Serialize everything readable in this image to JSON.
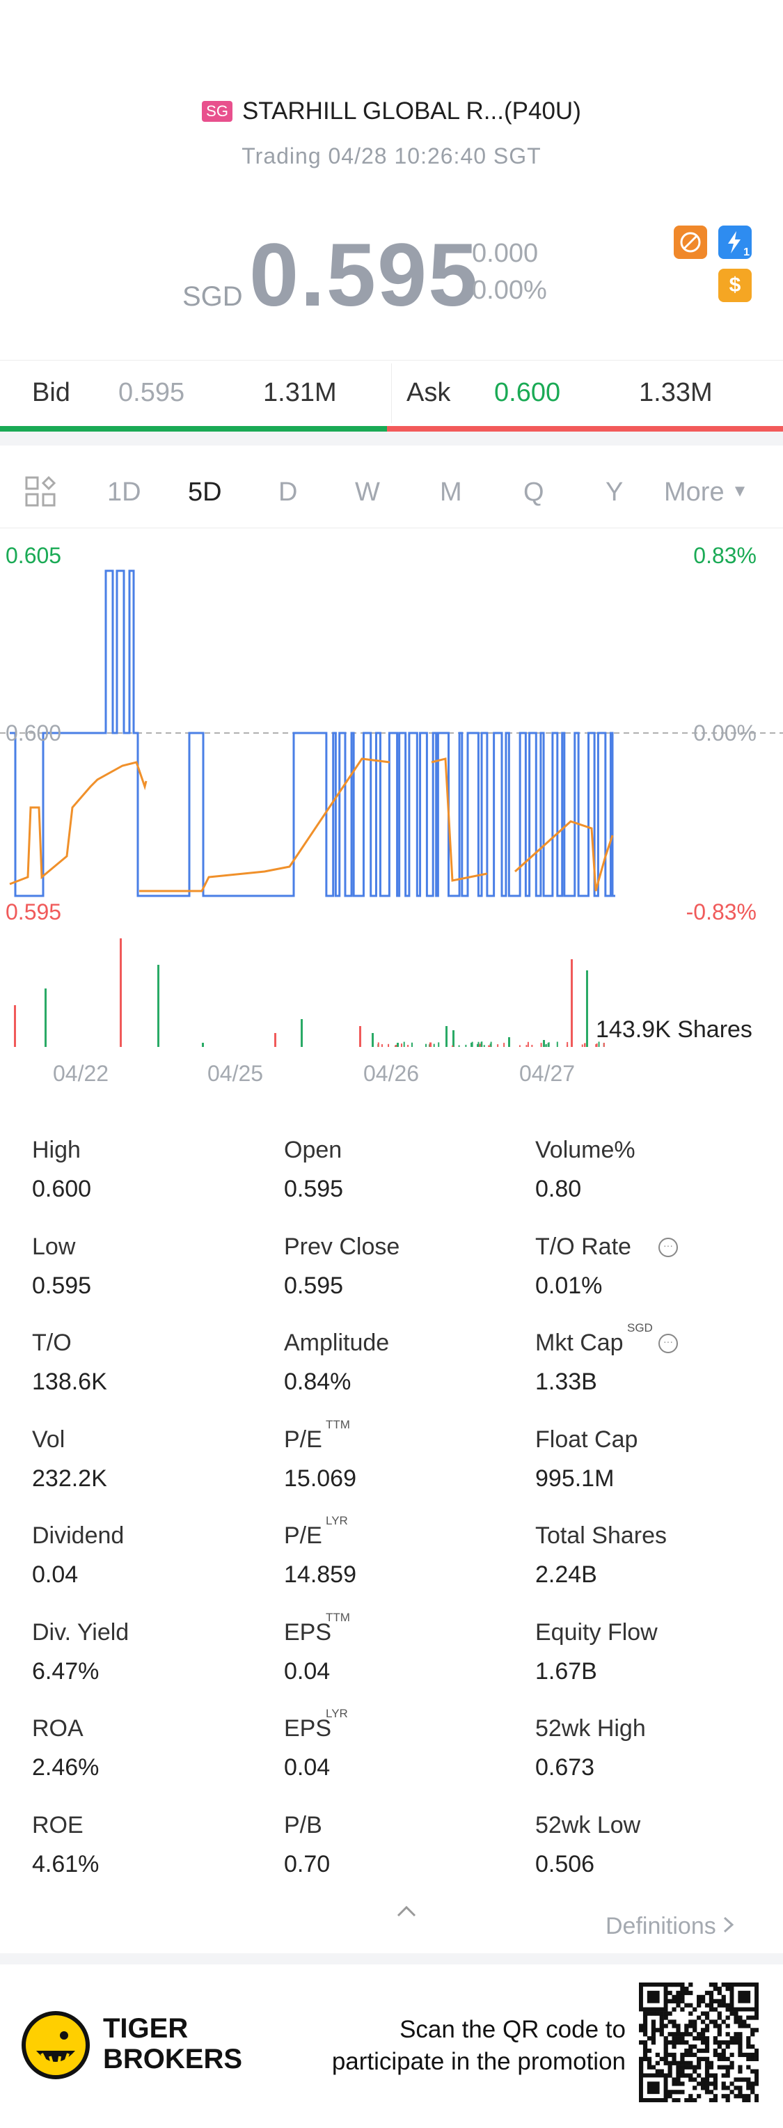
{
  "header": {
    "market_badge": "SG",
    "title": "STARHILL GLOBAL R...(P40U)",
    "status": "Trading 04/28 10:26:40 SGT",
    "currency": "SGD",
    "price": "0.595",
    "change": "0.000",
    "change_pct": "0.00%",
    "icons": [
      "no-fee-icon",
      "lightning-level-icon",
      "dollar-icon"
    ],
    "lightning_level": "1",
    "dollar_symbol": "$"
  },
  "quote": {
    "bid_label": "Bid",
    "bid_price": "0.595",
    "bid_size": "1.31M",
    "ask_label": "Ask",
    "ask_price": "0.600",
    "ask_size": "1.33M",
    "colors": {
      "bid": "#1aaa55",
      "ask": "#f25a5a"
    }
  },
  "tabs": {
    "items": [
      "1D",
      "5D",
      "D",
      "W",
      "M",
      "Q",
      "Y"
    ],
    "active": "5D",
    "more": "More"
  },
  "chart_data": {
    "type": "line",
    "price_axis": {
      "top": "0.605",
      "mid": "0.600",
      "bottom": "0.595"
    },
    "pct_axis": {
      "top": "0.83%",
      "mid": "0.00%",
      "bottom": "-0.83%"
    },
    "ylim": [
      0.595,
      0.605
    ],
    "dates": [
      "04/22",
      "04/25",
      "04/26",
      "04/27"
    ],
    "volume_label": "143.9K Shares",
    "colors": {
      "price_line": "#4a7fe6",
      "avg_line": "#f0902a",
      "up": "#2aaa66",
      "down": "#f05a5a"
    }
  },
  "stats": [
    [
      {
        "label": "High",
        "value": "0.600"
      },
      {
        "label": "Open",
        "value": "0.595"
      },
      {
        "label": "Volume%",
        "value": "0.80"
      }
    ],
    [
      {
        "label": "Low",
        "value": "0.595"
      },
      {
        "label": "Prev Close",
        "value": "0.595"
      },
      {
        "label": "T/O Rate",
        "value": "0.01%"
      }
    ],
    [
      {
        "label": "T/O",
        "value": "138.6K"
      },
      {
        "label": "Amplitude",
        "value": "0.84%"
      },
      {
        "label": "Mkt Cap",
        "value": "1.33B",
        "sup": "SGD"
      }
    ],
    [
      {
        "label": "Vol",
        "value": "232.2K"
      },
      {
        "label": "P/E",
        "value": "15.069",
        "sup": "TTM"
      },
      {
        "label": "Float Cap",
        "value": "995.1M"
      }
    ],
    [
      {
        "label": "Dividend",
        "value": "0.04"
      },
      {
        "label": "P/E",
        "value": "14.859",
        "sup": "LYR"
      },
      {
        "label": "Total Shares",
        "value": "2.24B"
      }
    ],
    [
      {
        "label": "Div. Yield",
        "value": "6.47%"
      },
      {
        "label": "EPS",
        "value": "0.04",
        "sup": "TTM"
      },
      {
        "label": "Equity Flow",
        "value": "1.67B"
      }
    ],
    [
      {
        "label": "ROA",
        "value": "2.46%"
      },
      {
        "label": "EPS",
        "value": "0.04",
        "sup": "LYR"
      },
      {
        "label": "52wk High",
        "value": "0.673"
      }
    ],
    [
      {
        "label": "ROE",
        "value": "4.61%"
      },
      {
        "label": "P/B",
        "value": "0.70"
      },
      {
        "label": "52wk Low",
        "value": "0.506"
      }
    ]
  ],
  "definitions": "Definitions",
  "footer": {
    "brand_line1": "TIGER",
    "brand_line2": "BROKERS",
    "promo_line1": "Scan the QR code to",
    "promo_line2": "participate in the promotion"
  }
}
